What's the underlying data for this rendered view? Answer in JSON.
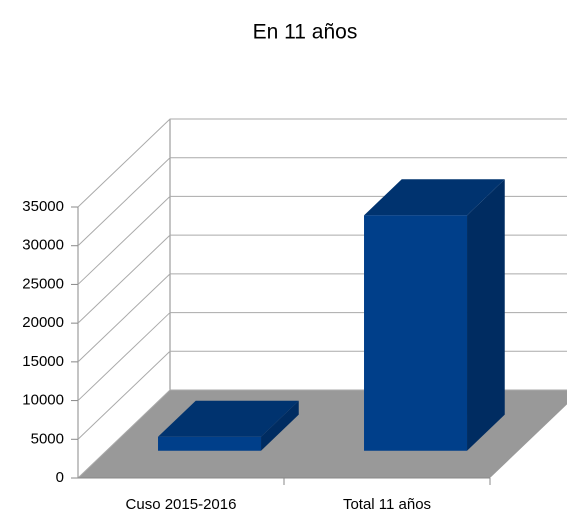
{
  "chart_data": {
    "type": "bar3d",
    "title": "En 11 años",
    "categories": [
      "Cuso 2015-2016",
      "Total 11 años"
    ],
    "values": [
      1800,
      30400
    ],
    "color": "#003f8a",
    "ylim": [
      0,
      35000
    ],
    "yticks": [
      0,
      5000,
      10000,
      15000,
      20000,
      25000,
      30000,
      35000
    ],
    "grid": true
  }
}
